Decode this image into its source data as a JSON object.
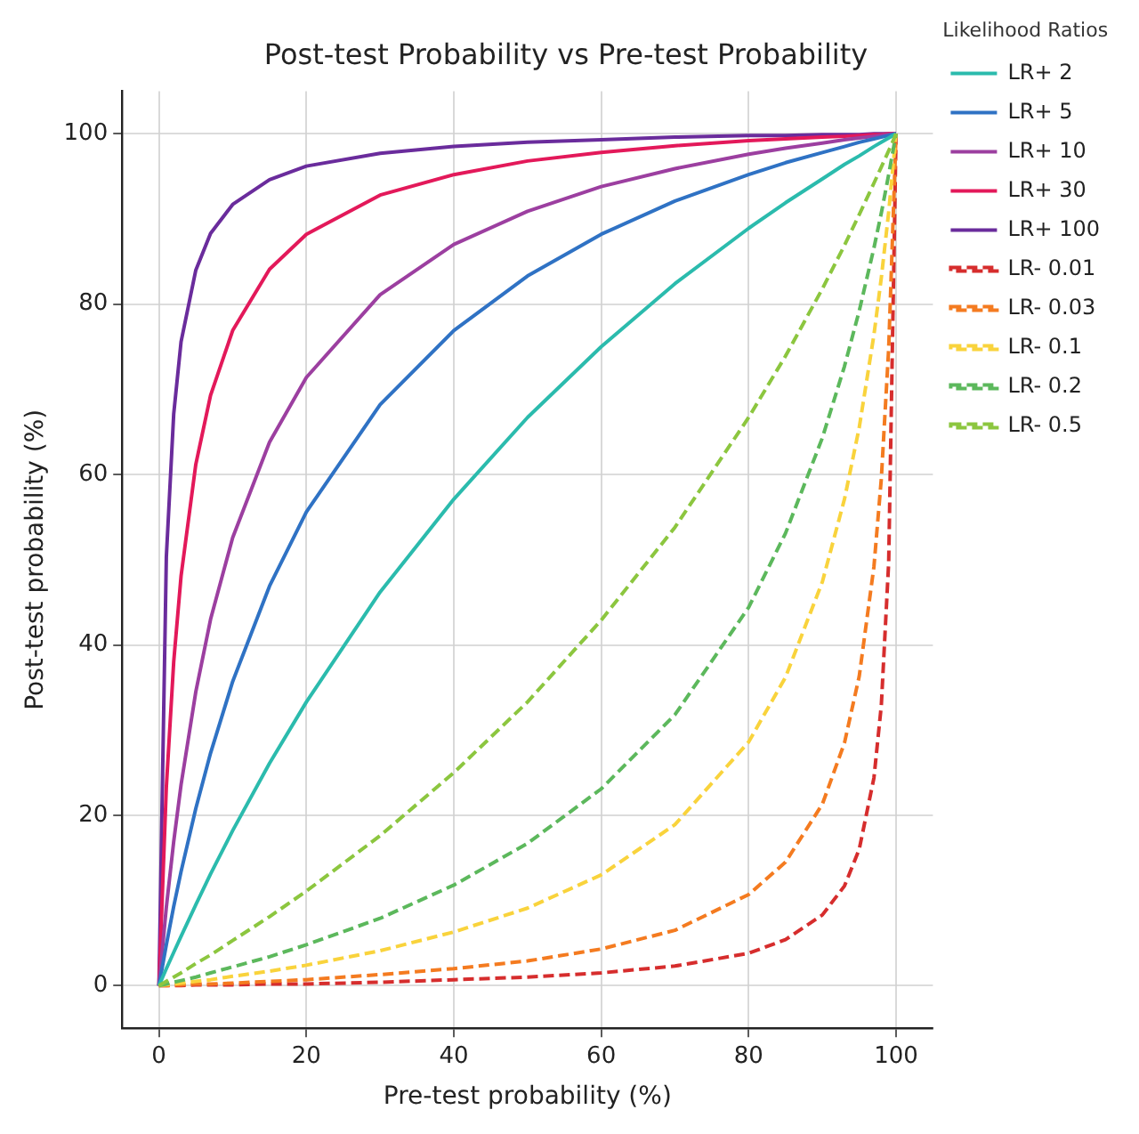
{
  "chart_data": {
    "type": "line",
    "title": "Post-test Probability vs Pre-test Probability",
    "xlabel": "Pre-test probability (%)",
    "ylabel": "Post-test probability (%)",
    "legend_title": "Likelihood Ratios",
    "legend": "right",
    "grid": true,
    "marker": "none",
    "x": [
      0,
      1,
      2,
      3,
      5,
      7,
      10,
      15,
      20,
      30,
      40,
      50,
      60,
      70,
      80,
      85,
      90,
      93,
      95,
      97,
      98,
      99,
      100
    ],
    "xlim": [
      -5,
      105
    ],
    "ylim": [
      -5,
      105
    ],
    "xticks": [
      0,
      20,
      40,
      60,
      80,
      100
    ],
    "yticks": [
      0,
      20,
      40,
      60,
      80,
      100
    ],
    "series": [
      {
        "name": "LR+ 2",
        "color": "#2bbbad",
        "line_style": "solid",
        "values": [
          0,
          2.0,
          3.9,
          5.8,
          9.5,
          13.1,
          18.2,
          26.1,
          33.3,
          46.2,
          57.1,
          66.7,
          75.0,
          82.4,
          88.9,
          91.9,
          94.7,
          96.4,
          97.4,
          98.5,
          99.0,
          99.5,
          100
        ]
      },
      {
        "name": "LR+ 5",
        "color": "#2f72c4",
        "line_style": "solid",
        "values": [
          0,
          4.8,
          9.3,
          13.4,
          20.8,
          27.3,
          35.7,
          46.9,
          55.6,
          68.2,
          76.9,
          83.3,
          88.2,
          92.1,
          95.2,
          96.6,
          97.8,
          98.5,
          99.0,
          99.4,
          99.6,
          99.8,
          100
        ]
      },
      {
        "name": "LR+ 10",
        "color": "#9c3fa0",
        "line_style": "solid",
        "values": [
          0,
          9.2,
          16.9,
          23.6,
          34.5,
          43.0,
          52.6,
          63.8,
          71.4,
          81.1,
          87.0,
          90.9,
          93.8,
          95.9,
          97.6,
          98.3,
          98.9,
          99.3,
          99.5,
          99.7,
          99.8,
          99.9,
          100
        ]
      },
      {
        "name": "LR+ 30",
        "color": "#e3195a",
        "line_style": "solid",
        "values": [
          0,
          23.3,
          38.0,
          48.1,
          61.2,
          69.3,
          76.9,
          84.1,
          88.2,
          92.8,
          95.2,
          96.8,
          97.8,
          98.6,
          99.2,
          99.4,
          99.6,
          99.7,
          99.8,
          99.9,
          99.9,
          100.0,
          100
        ]
      },
      {
        "name": "LR+ 100",
        "color": "#6a2c9c",
        "line_style": "solid",
        "values": [
          0,
          50.3,
          67.1,
          75.6,
          84.0,
          88.3,
          91.7,
          94.6,
          96.2,
          97.7,
          98.5,
          99.0,
          99.3,
          99.6,
          99.8,
          99.8,
          99.9,
          99.9,
          99.9,
          100.0,
          100.0,
          100.0,
          100
        ]
      },
      {
        "name": "LR- 0.01",
        "color": "#d62d2d",
        "line_style": "dashed",
        "values": [
          0,
          0.0,
          0.0,
          0.0,
          0.1,
          0.1,
          0.1,
          0.2,
          0.2,
          0.4,
          0.7,
          1.0,
          1.5,
          2.3,
          3.8,
          5.4,
          8.3,
          11.7,
          16.0,
          24.4,
          32.9,
          49.7,
          100
        ]
      },
      {
        "name": "LR- 0.03",
        "color": "#f47b20",
        "line_style": "dashed",
        "values": [
          0,
          0.0,
          0.1,
          0.1,
          0.2,
          0.2,
          0.3,
          0.5,
          0.7,
          1.3,
          2.0,
          2.9,
          4.3,
          6.5,
          10.7,
          14.5,
          21.3,
          28.5,
          36.3,
          49.2,
          59.5,
          74.8,
          100
        ]
      },
      {
        "name": "LR- 0.1",
        "color": "#f9d33c",
        "line_style": "dashed",
        "values": [
          0,
          0.1,
          0.2,
          0.3,
          0.5,
          0.7,
          1.1,
          1.7,
          2.4,
          4.1,
          6.3,
          9.1,
          13.0,
          18.9,
          28.6,
          36.2,
          47.4,
          57.1,
          65.5,
          76.4,
          83.1,
          90.8,
          100
        ]
      },
      {
        "name": "LR- 0.2",
        "color": "#5cb85c",
        "line_style": "dashed",
        "values": [
          0,
          0.2,
          0.4,
          0.6,
          1.0,
          1.5,
          2.2,
          3.4,
          4.8,
          7.9,
          11.8,
          16.7,
          23.1,
          31.8,
          44.4,
          53.1,
          64.3,
          72.7,
          79.2,
          86.6,
          90.7,
          95.2,
          100
        ]
      },
      {
        "name": "LR- 0.5",
        "color": "#8cc63f",
        "line_style": "dashed",
        "values": [
          0,
          0.5,
          1.0,
          1.5,
          2.6,
          3.6,
          5.3,
          8.1,
          11.1,
          17.6,
          25.0,
          33.3,
          42.9,
          53.8,
          66.7,
          73.9,
          81.8,
          86.9,
          90.5,
          94.2,
          96.1,
          98.0,
          100
        ]
      }
    ]
  }
}
